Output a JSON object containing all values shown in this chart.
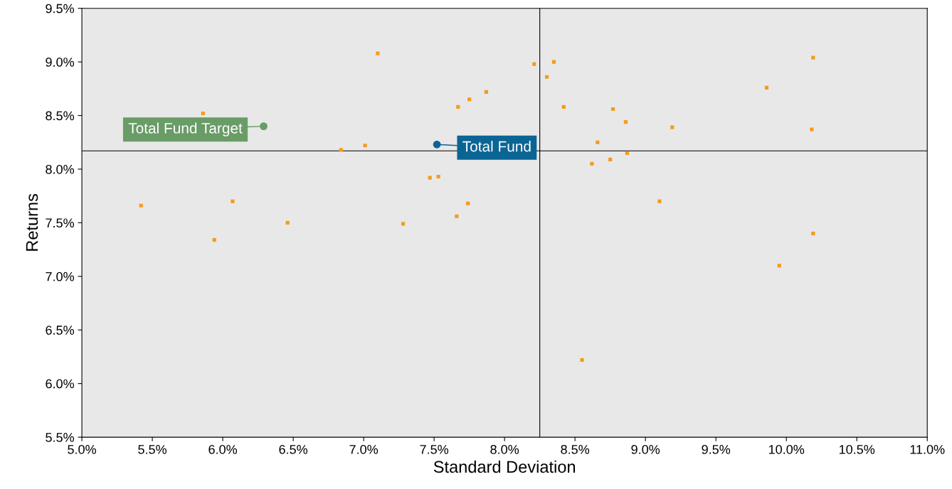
{
  "chart_data": {
    "type": "scatter",
    "xlabel": "Standard Deviation",
    "ylabel": "Returns",
    "xlim": [
      5.0,
      11.0
    ],
    "ylim": [
      5.5,
      9.5
    ],
    "xticks": [
      {
        "value": 5.0,
        "label": "5.0%"
      },
      {
        "value": 5.5,
        "label": "5.5%"
      },
      {
        "value": 6.0,
        "label": "6.0%"
      },
      {
        "value": 6.5,
        "label": "6.5%"
      },
      {
        "value": 7.0,
        "label": "7.0%"
      },
      {
        "value": 7.5,
        "label": "7.5%"
      },
      {
        "value": 8.0,
        "label": "8.0%"
      },
      {
        "value": 8.5,
        "label": "8.5%"
      },
      {
        "value": 9.0,
        "label": "9.0%"
      },
      {
        "value": 9.5,
        "label": "9.5%"
      },
      {
        "value": 10.0,
        "label": "10.0%"
      },
      {
        "value": 10.5,
        "label": "10.5%"
      },
      {
        "value": 11.0,
        "label": "11.0%"
      }
    ],
    "yticks": [
      {
        "value": 5.5,
        "label": "5.5%"
      },
      {
        "value": 6.0,
        "label": "6.0%"
      },
      {
        "value": 6.5,
        "label": "6.5%"
      },
      {
        "value": 7.0,
        "label": "7.0%"
      },
      {
        "value": 7.5,
        "label": "7.5%"
      },
      {
        "value": 8.0,
        "label": "8.0%"
      },
      {
        "value": 8.5,
        "label": "8.5%"
      },
      {
        "value": 9.0,
        "label": "9.0%"
      },
      {
        "value": 9.5,
        "label": "9.5%"
      }
    ],
    "grid": false,
    "legend": false,
    "ref_lines": [
      {
        "axis": "x",
        "value": 8.25,
        "color": "#000000"
      },
      {
        "axis": "y",
        "value": 8.17,
        "color": "#000000"
      }
    ],
    "series": [
      {
        "color": "#f39c1f",
        "marker": "square",
        "x": [
          5.42,
          5.86,
          5.94,
          6.07,
          6.46,
          6.84,
          7.01,
          7.1,
          7.28,
          7.47,
          7.53,
          7.66,
          7.67,
          7.74,
          7.75,
          7.87,
          8.21,
          8.35,
          8.3,
          8.42,
          8.62,
          8.66,
          8.55,
          8.75,
          8.77,
          8.86,
          8.87,
          9.1,
          9.19,
          9.86,
          9.95,
          10.19,
          10.18,
          10.19
        ],
        "values": [
          7.66,
          8.52,
          7.34,
          7.7,
          7.5,
          8.18,
          8.22,
          9.08,
          7.49,
          7.92,
          7.93,
          7.56,
          8.58,
          7.68,
          8.65,
          8.72,
          8.98,
          9.0,
          8.86,
          8.58,
          8.05,
          8.25,
          6.22,
          8.09,
          8.56,
          8.44,
          8.15,
          7.7,
          8.39,
          8.76,
          7.1,
          9.04,
          8.37,
          7.4
        ]
      },
      {
        "color": "#699c66",
        "marker": "circle",
        "x": [
          6.29
        ],
        "values": [
          8.4
        ]
      },
      {
        "color": "#0b6594",
        "marker": "circle",
        "x": [
          7.52
        ],
        "values": [
          8.23
        ]
      }
    ],
    "annotations": [
      {
        "text": "Total Fund Target",
        "x": 6.29,
        "y": 8.4
      },
      {
        "text": "Total Fund",
        "x": 7.52,
        "y": 8.23
      }
    ]
  }
}
